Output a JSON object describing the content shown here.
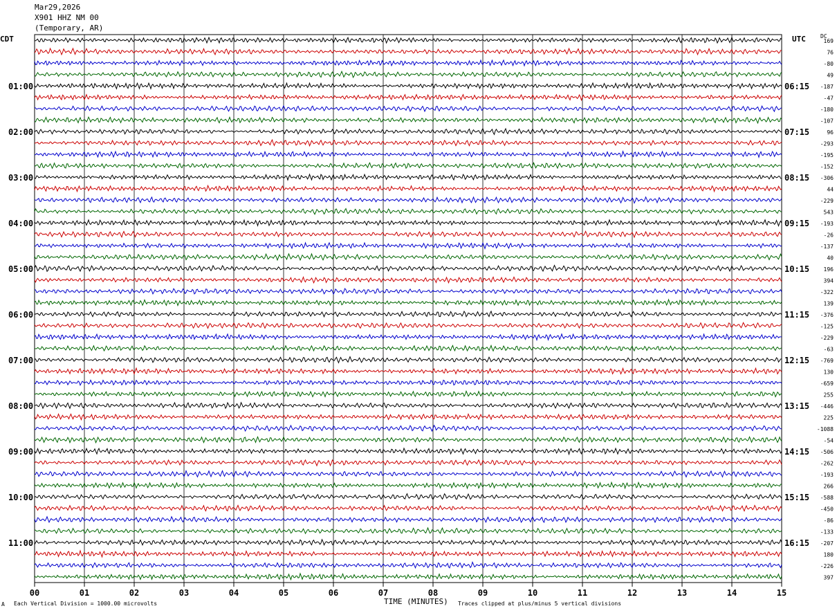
{
  "header": {
    "date": "Mar29,2026",
    "station": "X901 HHZ NM 00",
    "location": "(Temporary, AR)"
  },
  "left_tz": "CDT",
  "right_tz": "UTC",
  "dc_label": "DC",
  "footer": {
    "scale": "Each Vertical Division = 1000.00 microvolts",
    "clip": "Traces clipped at plus/minus 5 vertical divisions",
    "corner": "A"
  },
  "chart_data": {
    "type": "line",
    "title": "",
    "xlabel": "TIME (MINUTES)",
    "x_ticks": [
      "00",
      "01",
      "02",
      "03",
      "04",
      "05",
      "06",
      "07",
      "08",
      "09",
      "10",
      "11",
      "12",
      "13",
      "14",
      "15"
    ],
    "xlim": [
      0,
      15
    ],
    "trace_colors": [
      "#000000",
      "#cc0000",
      "#0000cc",
      "#006600"
    ],
    "traces_per_hour": 4,
    "trace_count": 48,
    "left_hour_labels": [
      "01:00",
      "02:00",
      "03:00",
      "04:00",
      "05:00",
      "06:00",
      "07:00",
      "08:00",
      "09:00",
      "10:00",
      "11:00"
    ],
    "right_hour_labels": [
      "06:15",
      "07:15",
      "08:15",
      "09:15",
      "10:15",
      "11:15",
      "12:15",
      "13:15",
      "14:15",
      "15:15",
      "16:15"
    ],
    "dc_offsets": [
      "169",
      "76",
      "-80",
      "49",
      "-187",
      "-47",
      "-180",
      "-107",
      "96",
      "-293",
      "-195",
      "-152",
      "-306",
      "44",
      "-229",
      "543",
      "-193",
      "-26",
      "-137",
      "40",
      "196",
      "394",
      "-322",
      "139",
      "-376",
      "-125",
      "-229",
      "-63",
      "-769",
      "130",
      "-659",
      "255",
      "-446",
      "225",
      "-1088",
      "-54",
      "-506",
      "-262",
      "-193",
      "266",
      "-588",
      "-450",
      "-86",
      "-133",
      "-207",
      "180",
      "-226",
      "397"
    ]
  }
}
